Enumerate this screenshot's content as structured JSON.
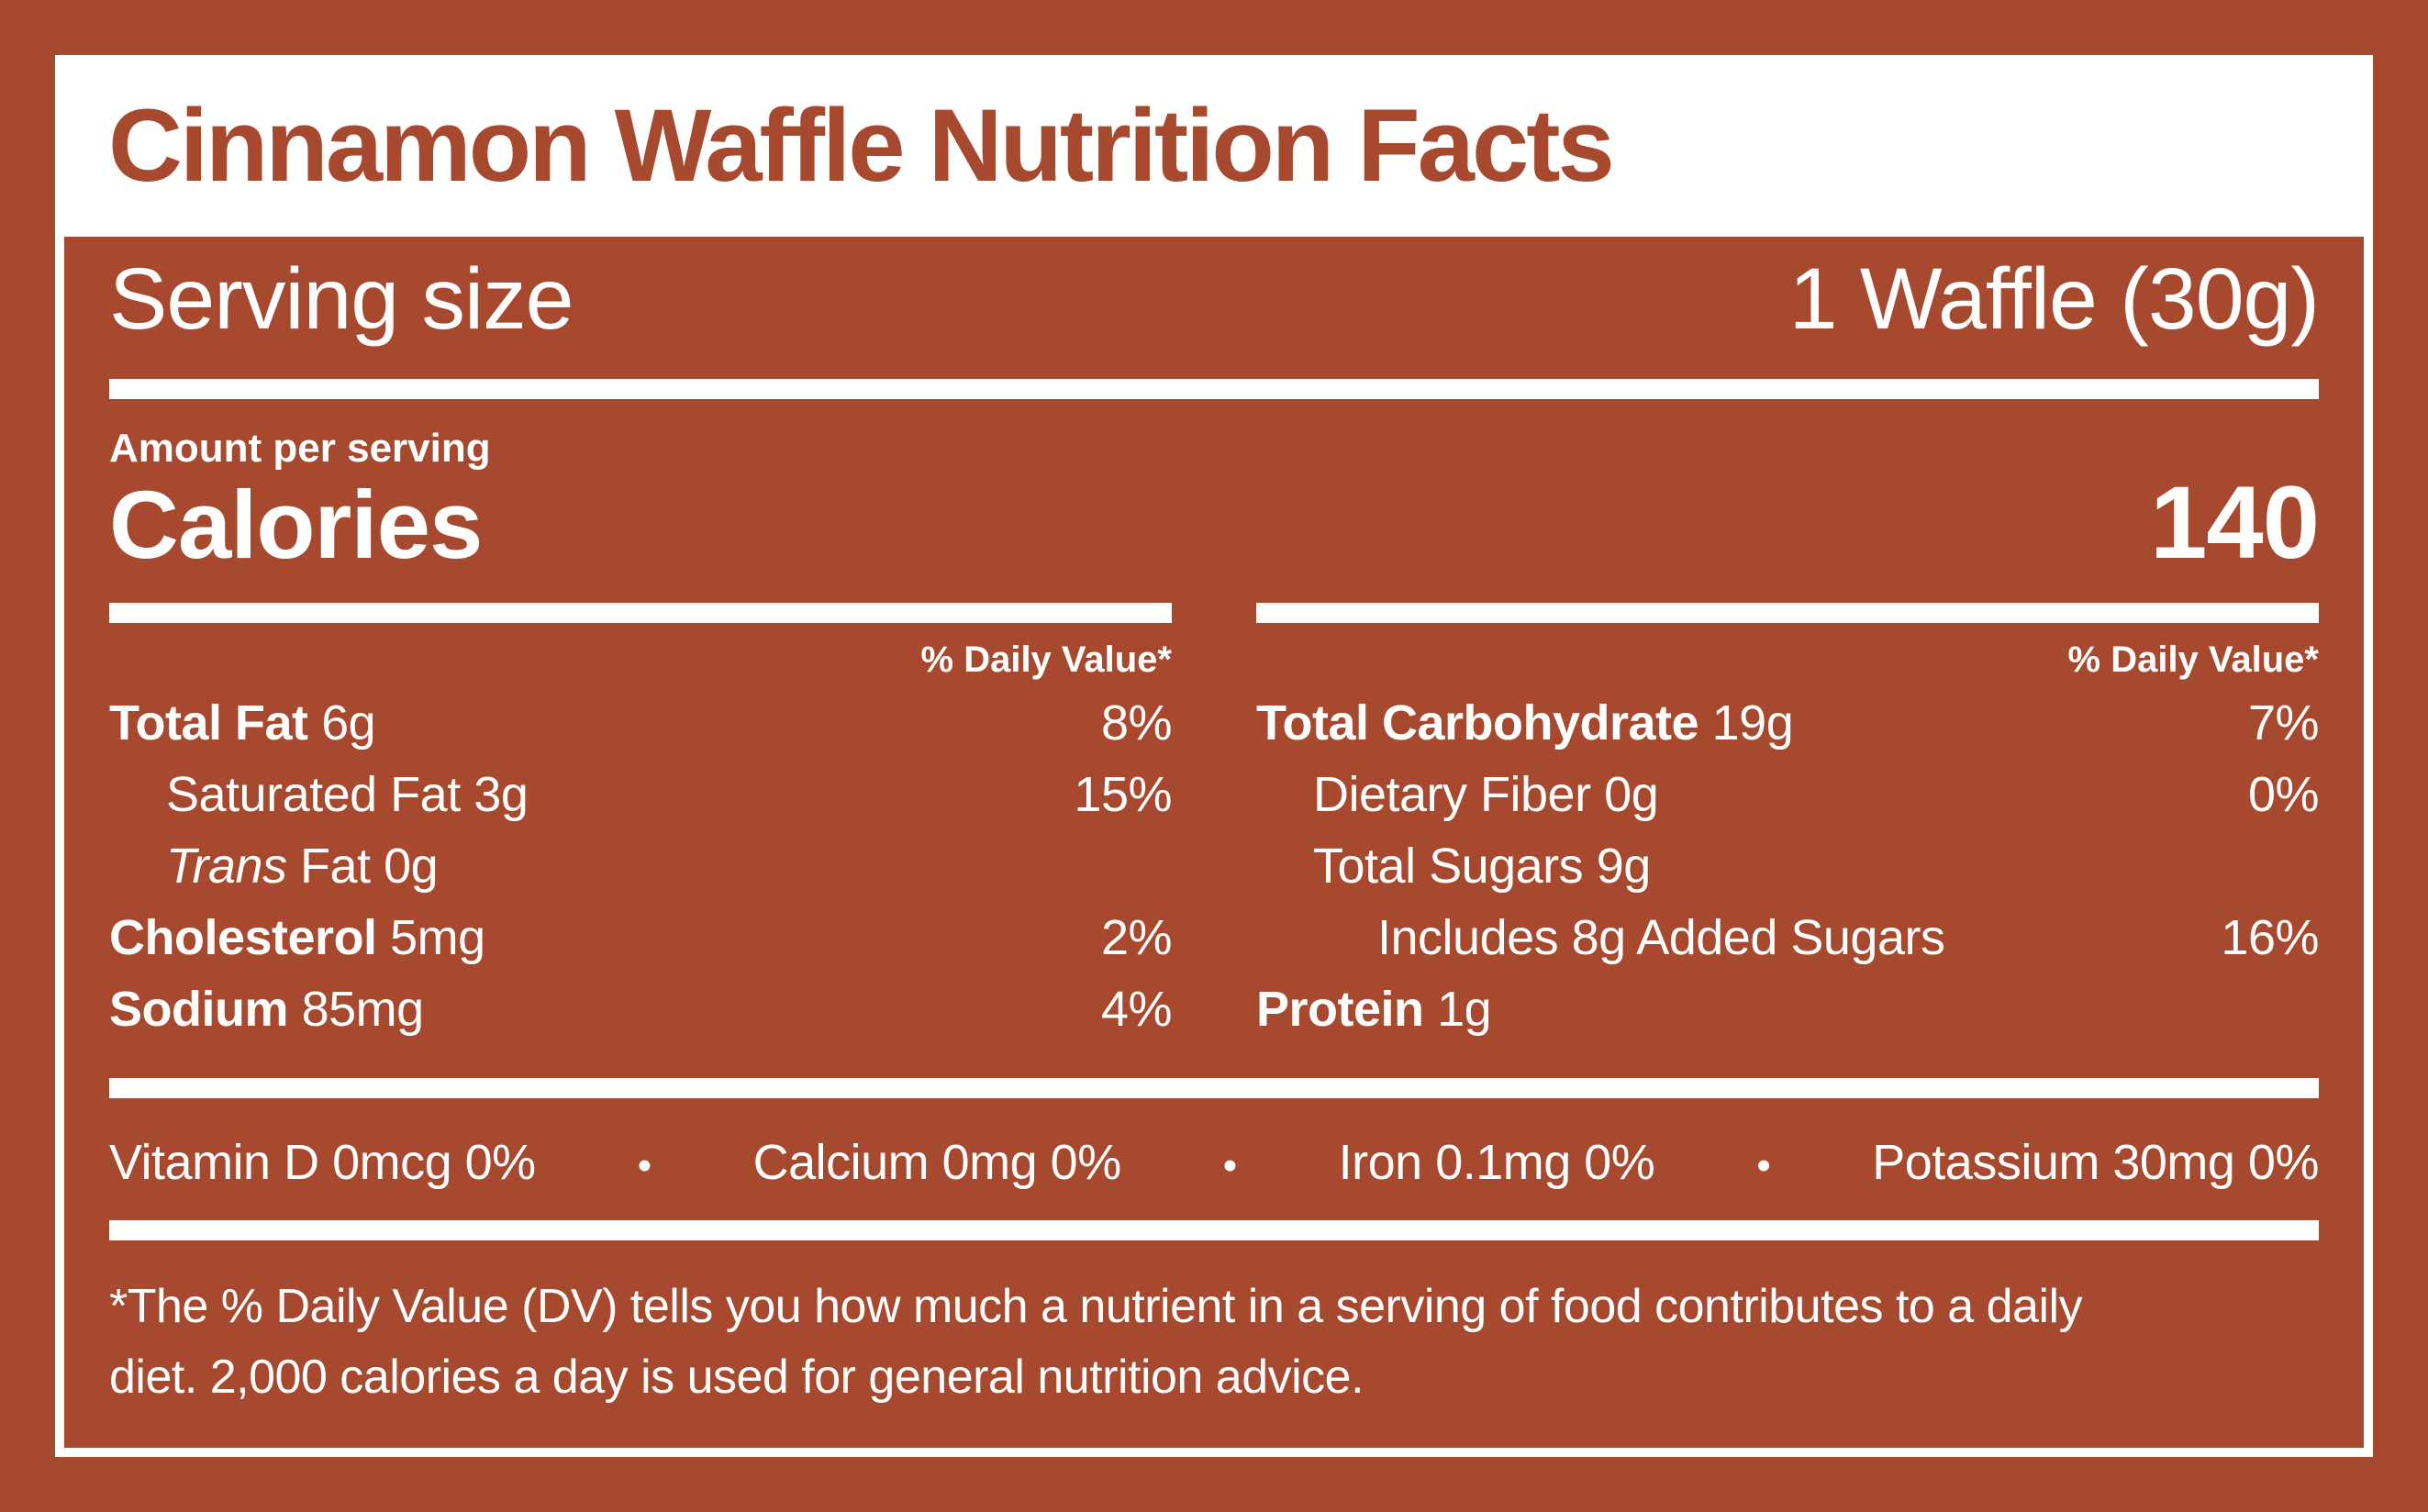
{
  "colors": {
    "brand": "#A6492E",
    "surface": "#FFFFFF"
  },
  "header": {
    "title": "Cinnamon Waffle Nutrition Facts"
  },
  "serving": {
    "label": "Serving size",
    "value": "1 Waffle (30g)"
  },
  "calories": {
    "amount_label": "Amount per serving",
    "label": "Calories",
    "value": "140"
  },
  "columns": {
    "left": {
      "dv_header": "% Daily Value*",
      "rows": [
        {
          "parts": [
            {
              "text": "Total Fat",
              "bold": true
            }
          ],
          "amount": "6g",
          "dv": "8%",
          "indent": 0
        },
        {
          "parts": [
            {
              "text": "Saturated Fat",
              "bold": false
            }
          ],
          "amount": "3g",
          "dv": "15%",
          "indent": 1
        },
        {
          "parts": [
            {
              "text": "Trans",
              "bold": false,
              "italic": true
            },
            {
              "text": " Fat",
              "bold": false
            }
          ],
          "amount": "0g",
          "dv": "",
          "indent": 1
        },
        {
          "parts": [
            {
              "text": "Cholesterol",
              "bold": true
            }
          ],
          "amount": "5mg",
          "dv": "2%",
          "indent": 0
        },
        {
          "parts": [
            {
              "text": "Sodium",
              "bold": true
            }
          ],
          "amount": "85mg",
          "dv": "4%",
          "indent": 0
        }
      ]
    },
    "right": {
      "dv_header": "% Daily Value*",
      "rows": [
        {
          "parts": [
            {
              "text": "Total Carbohydrate",
              "bold": true
            }
          ],
          "amount": "19g",
          "dv": "7%",
          "indent": 0
        },
        {
          "parts": [
            {
              "text": "Dietary Fiber",
              "bold": false
            }
          ],
          "amount": "0g",
          "dv": "0%",
          "indent": 1
        },
        {
          "parts": [
            {
              "text": "Total Sugars",
              "bold": false
            }
          ],
          "amount": "9g",
          "dv": "",
          "indent": 1
        },
        {
          "parts": [
            {
              "text": "Includes 8g Added Sugars",
              "bold": false
            }
          ],
          "amount": "",
          "dv": "16%",
          "indent": 2
        },
        {
          "parts": [
            {
              "text": "Protein",
              "bold": true
            }
          ],
          "amount": "1g",
          "dv": "",
          "indent": 0
        }
      ]
    }
  },
  "micronutrients": {
    "bullet": "•",
    "items": [
      "Vitamin D 0mcg 0%",
      "Calcium 0mg 0%",
      "Iron 0.1mg 0%",
      "Potassium 30mg 0%"
    ]
  },
  "footnote": {
    "lines": [
      "*The % Daily Value (DV) tells you how much a nutrient in a serving of food contributes to a daily",
      "diet. 2,000 calories a day is used for general nutrition advice."
    ]
  }
}
